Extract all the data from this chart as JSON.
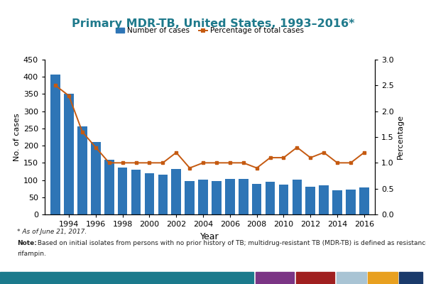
{
  "years": [
    1993,
    1994,
    1995,
    1996,
    1997,
    1998,
    1999,
    2000,
    2001,
    2002,
    2003,
    2004,
    2005,
    2006,
    2007,
    2008,
    2009,
    2010,
    2011,
    2012,
    2013,
    2014,
    2015,
    2016
  ],
  "cases": [
    407,
    351,
    255,
    210,
    158,
    137,
    130,
    120,
    115,
    132,
    96,
    101,
    98,
    103,
    103,
    88,
    94,
    86,
    101,
    80,
    84,
    71,
    72,
    78
  ],
  "percentages": [
    2.5,
    2.3,
    1.6,
    1.3,
    1.0,
    1.0,
    1.0,
    1.0,
    1.0,
    1.2,
    0.9,
    1.0,
    1.0,
    1.0,
    1.0,
    0.9,
    1.1,
    1.1,
    1.3,
    1.1,
    1.2,
    1.0,
    1.0,
    1.2
  ],
  "bar_color": "#2E75B6",
  "line_color": "#C55A11",
  "marker_color": "#C55A11",
  "title": "Primary MDR-TB, United States, 1993–2016*",
  "title_color": "#1F7A8C",
  "xlabel": "Year",
  "ylabel_left": "No. of cases",
  "ylabel_right": "Percentage",
  "ylim_left": [
    0,
    450
  ],
  "ylim_right": [
    0,
    3
  ],
  "yticks_left": [
    0,
    50,
    100,
    150,
    200,
    250,
    300,
    350,
    400,
    450
  ],
  "yticks_right": [
    0,
    0.5,
    1.0,
    1.5,
    2.0,
    2.5,
    3.0
  ],
  "legend_bar_label": "Number of cases",
  "legend_line_label": "Percentage of total cases",
  "footnote1": "* As of June 21, 2017.",
  "footnote2_bold": "Note:",
  "footnote2_rest": " Based on initial isolates from persons with no prior history of TB; multidrug-resistant TB (MDR-TB) is defined as resistance to at least isoniazid and",
  "footnote3": "rifampin.",
  "colorbar_colors": [
    "#1B7A8C",
    "#7B3585",
    "#A02020",
    "#A9C4D4",
    "#E8A020",
    "#1A3A6B"
  ],
  "colorbar_widths": [
    0.595,
    0.09,
    0.09,
    0.07,
    0.07,
    0.055
  ],
  "colorbar_starts": [
    0.0,
    0.6,
    0.695,
    0.79,
    0.863,
    0.937
  ],
  "background_color": "#FFFFFF"
}
